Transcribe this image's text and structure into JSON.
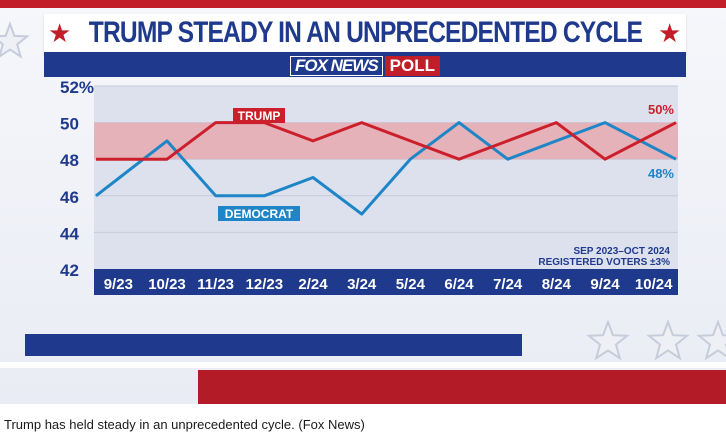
{
  "header": {
    "title": "TRUMP STEADY IN AN UNPRECEDENTED CYCLE",
    "logo": "FOX NEWS",
    "logo_poll": "POLL"
  },
  "caption": "Trump has held steady in an unprecedented cycle. (Fox News)",
  "colors": {
    "navy": "#1f3a8c",
    "red": "#c21e2a",
    "trump_line": "#cc1f2c",
    "democrat_line": "#1e86c6",
    "band": "#e8a2a8"
  },
  "chart_data": {
    "type": "line",
    "categories": [
      "9/23",
      "10/23",
      "11/23",
      "12/23",
      "2/24",
      "3/24",
      "5/24",
      "6/24",
      "7/24",
      "8/24",
      "9/24",
      "10/24"
    ],
    "series": [
      {
        "name": "TRUMP",
        "values": [
          48,
          48,
          50,
          50,
          49,
          50,
          49,
          48,
          49,
          50,
          48,
          50
        ]
      },
      {
        "name": "DEMOCRAT",
        "values": [
          46,
          49,
          46,
          46,
          47,
          45,
          48,
          50,
          48,
          49,
          50,
          48
        ]
      }
    ],
    "end_labels": {
      "trump": "50%",
      "democrat": "48%"
    },
    "band": [
      48,
      50
    ],
    "yticks": [
      "52%",
      "50",
      "48",
      "46",
      "44",
      "42"
    ],
    "ylim": [
      42,
      52
    ],
    "note_line1": "SEP 2023–OCT 2024",
    "note_line2": "REGISTERED VOTERS ±3%"
  }
}
